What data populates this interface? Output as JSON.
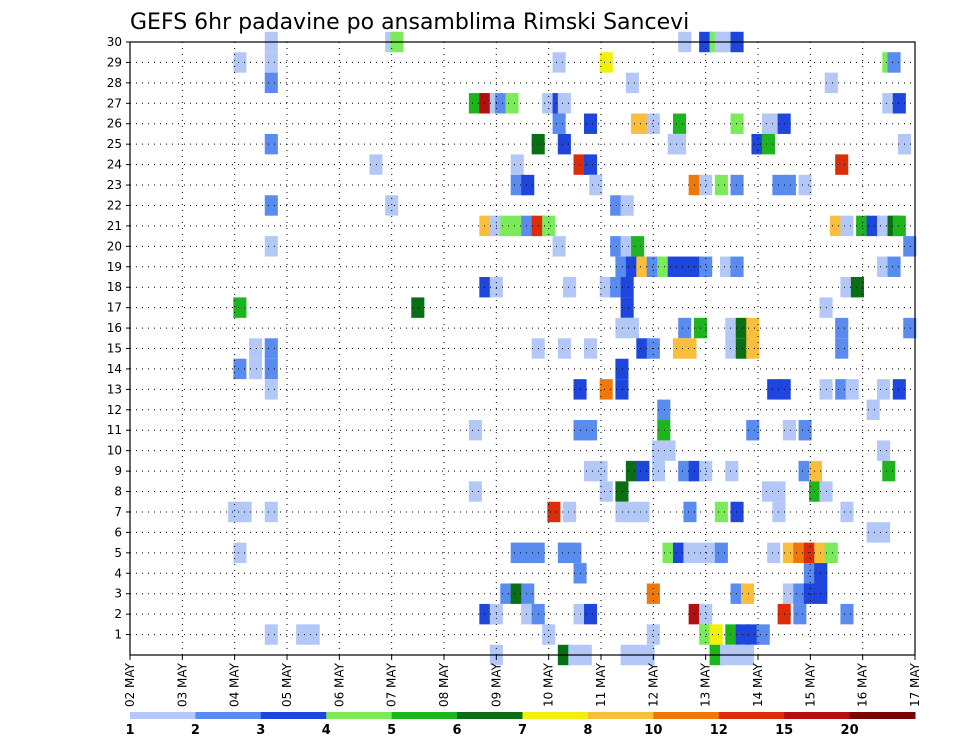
{
  "chart_data": {
    "type": "heatmap",
    "title": "GEFS 6hr padavine po ansamblima Rimski Sancevi",
    "x_labels": [
      "02 MAY",
      "03 MAY",
      "04 MAY",
      "05 MAY",
      "06 MAY",
      "07 MAY",
      "08 MAY",
      "09 MAY",
      "10 MAY",
      "11 MAY",
      "12 MAY",
      "13 MAY",
      "14 MAY",
      "15 MAY",
      "16 MAY",
      "17 MAY"
    ],
    "y_labels": [
      "1",
      "2",
      "3",
      "4",
      "5",
      "6",
      "7",
      "8",
      "9",
      "10",
      "11",
      "12",
      "13",
      "14",
      "15",
      "16",
      "17",
      "18",
      "19",
      "20",
      "21",
      "22",
      "23",
      "24",
      "25",
      "26",
      "27",
      "28",
      "29",
      "30"
    ],
    "ylim": [
      0,
      30
    ],
    "xlim": [
      "02 MAY 00Z",
      "17 MAY 00Z"
    ],
    "time_step_hours": 6,
    "grid": "dotted",
    "legend": {
      "position": "bottom",
      "labels": [
        "1",
        "2",
        "3",
        "4",
        "5",
        "6",
        "7",
        "8",
        "10",
        "12",
        "15",
        "20"
      ],
      "colors": [
        "#b4c8f8",
        "#5a8cf0",
        "#1e46dc",
        "#7ceb5a",
        "#1eb41e",
        "#0a6e14",
        "#f0f00a",
        "#f8be3c",
        "#f0780a",
        "#dc2d0a",
        "#b40f0f",
        "#780505"
      ]
    },
    "points": [
      [
        4.7,
        30,
        1
      ],
      [
        7.0,
        30,
        1
      ],
      [
        7.1,
        30,
        4
      ],
      [
        12.6,
        30,
        1
      ],
      [
        13.0,
        30,
        3
      ],
      [
        13.2,
        30,
        4
      ],
      [
        13.3,
        30,
        1
      ],
      [
        13.5,
        30,
        1
      ],
      [
        13.6,
        30,
        3
      ],
      [
        4.1,
        29,
        1
      ],
      [
        4.7,
        29,
        1
      ],
      [
        10.2,
        29,
        1
      ],
      [
        11.1,
        29,
        7
      ],
      [
        16.5,
        29,
        4
      ],
      [
        16.6,
        29,
        2
      ],
      [
        4.7,
        28,
        2
      ],
      [
        11.6,
        28,
        1
      ],
      [
        15.4,
        28,
        1
      ],
      [
        8.6,
        27,
        5
      ],
      [
        8.8,
        27,
        11
      ],
      [
        9.0,
        27,
        1
      ],
      [
        9.1,
        27,
        2
      ],
      [
        9.3,
        27,
        4
      ],
      [
        10.0,
        27,
        1
      ],
      [
        10.2,
        27,
        3
      ],
      [
        10.3,
        27,
        1
      ],
      [
        16.5,
        27,
        1
      ],
      [
        16.7,
        27,
        3
      ],
      [
        10.2,
        26,
        2
      ],
      [
        10.8,
        26,
        3
      ],
      [
        11.7,
        26,
        8
      ],
      [
        11.9,
        26,
        8
      ],
      [
        12.0,
        26,
        1
      ],
      [
        12.5,
        26,
        5
      ],
      [
        13.6,
        26,
        4
      ],
      [
        14.2,
        26,
        1
      ],
      [
        14.3,
        26,
        1
      ],
      [
        14.5,
        26,
        3
      ],
      [
        4.7,
        25,
        2
      ],
      [
        9.8,
        25,
        6
      ],
      [
        10.3,
        25,
        3
      ],
      [
        12.4,
        25,
        1
      ],
      [
        12.5,
        25,
        1
      ],
      [
        14.0,
        25,
        3
      ],
      [
        14.2,
        25,
        5
      ],
      [
        16.8,
        25,
        1
      ],
      [
        6.7,
        24,
        1
      ],
      [
        9.4,
        24,
        1
      ],
      [
        10.6,
        24,
        10
      ],
      [
        10.8,
        24,
        3
      ],
      [
        15.6,
        24,
        10
      ],
      [
        9.4,
        23,
        2
      ],
      [
        9.6,
        23,
        3
      ],
      [
        10.9,
        23,
        1
      ],
      [
        12.8,
        23,
        9
      ],
      [
        13.0,
        23,
        1
      ],
      [
        13.3,
        23,
        4
      ],
      [
        13.6,
        23,
        2
      ],
      [
        14.4,
        23,
        2
      ],
      [
        14.6,
        23,
        2
      ],
      [
        14.9,
        23,
        1
      ],
      [
        4.7,
        22,
        2
      ],
      [
        7.0,
        22,
        1
      ],
      [
        11.3,
        22,
        2
      ],
      [
        11.5,
        22,
        1
      ],
      [
        8.8,
        21,
        8
      ],
      [
        9.0,
        21,
        1
      ],
      [
        9.2,
        21,
        4
      ],
      [
        9.4,
        21,
        4
      ],
      [
        9.6,
        21,
        2
      ],
      [
        9.8,
        21,
        10
      ],
      [
        10.0,
        21,
        4
      ],
      [
        15.5,
        21,
        8
      ],
      [
        15.7,
        21,
        1
      ],
      [
        16.0,
        21,
        5
      ],
      [
        16.2,
        21,
        3
      ],
      [
        16.4,
        21,
        1
      ],
      [
        16.6,
        21,
        6
      ],
      [
        16.7,
        21,
        5
      ],
      [
        4.7,
        20,
        1
      ],
      [
        10.2,
        20,
        1
      ],
      [
        11.3,
        20,
        2
      ],
      [
        11.5,
        20,
        1
      ],
      [
        11.7,
        20,
        5
      ],
      [
        16.9,
        20,
        2
      ],
      [
        11.4,
        19,
        2
      ],
      [
        11.6,
        19,
        3
      ],
      [
        11.8,
        19,
        8
      ],
      [
        12.0,
        19,
        2
      ],
      [
        12.2,
        19,
        4
      ],
      [
        12.4,
        19,
        3
      ],
      [
        12.6,
        19,
        3
      ],
      [
        12.8,
        19,
        3
      ],
      [
        13.0,
        19,
        2
      ],
      [
        13.4,
        19,
        1
      ],
      [
        13.6,
        19,
        2
      ],
      [
        16.4,
        19,
        1
      ],
      [
        16.6,
        19,
        2
      ],
      [
        8.8,
        18,
        3
      ],
      [
        9.0,
        18,
        1
      ],
      [
        10.4,
        18,
        1
      ],
      [
        11.1,
        18,
        1
      ],
      [
        11.3,
        18,
        2
      ],
      [
        11.5,
        18,
        3
      ],
      [
        15.7,
        18,
        1
      ],
      [
        15.9,
        18,
        6
      ],
      [
        4.1,
        17,
        5
      ],
      [
        7.5,
        17,
        6
      ],
      [
        11.5,
        17,
        3
      ],
      [
        15.3,
        17,
        1
      ],
      [
        11.4,
        16,
        1
      ],
      [
        11.6,
        16,
        1
      ],
      [
        12.6,
        16,
        2
      ],
      [
        12.9,
        16,
        5
      ],
      [
        13.5,
        16,
        1
      ],
      [
        13.7,
        16,
        6
      ],
      [
        13.9,
        16,
        8
      ],
      [
        15.6,
        16,
        2
      ],
      [
        16.9,
        16,
        2
      ],
      [
        4.4,
        15,
        1
      ],
      [
        4.7,
        15,
        2
      ],
      [
        9.8,
        15,
        1
      ],
      [
        10.3,
        15,
        1
      ],
      [
        10.8,
        15,
        1
      ],
      [
        11.8,
        15,
        3
      ],
      [
        12.0,
        15,
        2
      ],
      [
        12.5,
        15,
        8
      ],
      [
        12.7,
        15,
        8
      ],
      [
        13.5,
        15,
        1
      ],
      [
        13.7,
        15,
        6
      ],
      [
        13.9,
        15,
        8
      ],
      [
        15.6,
        15,
        2
      ],
      [
        4.1,
        14,
        2
      ],
      [
        4.4,
        14,
        1
      ],
      [
        4.7,
        14,
        2
      ],
      [
        11.4,
        14,
        3
      ],
      [
        4.7,
        13,
        1
      ],
      [
        10.6,
        13,
        3
      ],
      [
        11.1,
        13,
        9
      ],
      [
        11.4,
        13,
        3
      ],
      [
        14.3,
        13,
        3
      ],
      [
        14.5,
        13,
        3
      ],
      [
        15.3,
        13,
        1
      ],
      [
        15.6,
        13,
        2
      ],
      [
        15.8,
        13,
        1
      ],
      [
        16.4,
        13,
        1
      ],
      [
        16.7,
        13,
        3
      ],
      [
        12.2,
        12,
        2
      ],
      [
        16.2,
        12,
        1
      ],
      [
        8.6,
        11,
        1
      ],
      [
        10.6,
        11,
        2
      ],
      [
        10.8,
        11,
        2
      ],
      [
        12.2,
        11,
        5
      ],
      [
        13.9,
        11,
        2
      ],
      [
        14.6,
        11,
        1
      ],
      [
        14.9,
        11,
        2
      ],
      [
        12.1,
        10,
        1
      ],
      [
        12.3,
        10,
        1
      ],
      [
        16.4,
        10,
        1
      ],
      [
        10.8,
        9,
        1
      ],
      [
        11.0,
        9,
        1
      ],
      [
        11.6,
        9,
        6
      ],
      [
        11.8,
        9,
        3
      ],
      [
        12.1,
        9,
        1
      ],
      [
        12.6,
        9,
        2
      ],
      [
        12.8,
        9,
        3
      ],
      [
        13.0,
        9,
        1
      ],
      [
        13.5,
        9,
        1
      ],
      [
        14.9,
        9,
        2
      ],
      [
        15.1,
        9,
        8
      ],
      [
        16.5,
        9,
        5
      ],
      [
        8.6,
        8,
        1
      ],
      [
        11.1,
        8,
        1
      ],
      [
        11.4,
        8,
        6
      ],
      [
        14.2,
        8,
        1
      ],
      [
        14.4,
        8,
        1
      ],
      [
        15.1,
        8,
        5
      ],
      [
        15.3,
        8,
        1
      ],
      [
        4.0,
        7,
        1
      ],
      [
        4.2,
        7,
        1
      ],
      [
        4.7,
        7,
        1
      ],
      [
        10.1,
        7,
        10
      ],
      [
        10.4,
        7,
        1
      ],
      [
        11.4,
        7,
        1
      ],
      [
        11.6,
        7,
        1
      ],
      [
        11.8,
        7,
        1
      ],
      [
        12.7,
        7,
        2
      ],
      [
        13.3,
        7,
        4
      ],
      [
        13.6,
        7,
        3
      ],
      [
        14.4,
        7,
        1
      ],
      [
        15.7,
        7,
        1
      ],
      [
        16.2,
        6,
        1
      ],
      [
        16.4,
        6,
        1
      ],
      [
        4.1,
        5,
        1
      ],
      [
        9.4,
        5,
        2
      ],
      [
        9.6,
        5,
        2
      ],
      [
        9.8,
        5,
        2
      ],
      [
        10.3,
        5,
        2
      ],
      [
        10.5,
        5,
        2
      ],
      [
        12.3,
        5,
        4
      ],
      [
        12.5,
        5,
        3
      ],
      [
        12.7,
        5,
        1
      ],
      [
        12.9,
        5,
        1
      ],
      [
        13.1,
        5,
        1
      ],
      [
        13.3,
        5,
        2
      ],
      [
        14.3,
        5,
        1
      ],
      [
        14.6,
        5,
        8
      ],
      [
        14.8,
        5,
        9
      ],
      [
        15.0,
        5,
        10
      ],
      [
        15.2,
        5,
        8
      ],
      [
        15.4,
        5,
        4
      ],
      [
        10.6,
        4,
        2
      ],
      [
        15.0,
        4,
        2
      ],
      [
        15.2,
        4,
        3
      ],
      [
        9.2,
        3,
        2
      ],
      [
        9.4,
        3,
        6
      ],
      [
        9.6,
        3,
        2
      ],
      [
        12.0,
        3,
        9
      ],
      [
        13.6,
        3,
        2
      ],
      [
        13.8,
        3,
        8
      ],
      [
        14.6,
        3,
        1
      ],
      [
        14.8,
        3,
        2
      ],
      [
        15.0,
        3,
        3
      ],
      [
        15.2,
        3,
        3
      ],
      [
        8.8,
        2,
        3
      ],
      [
        9.0,
        2,
        1
      ],
      [
        9.6,
        2,
        1
      ],
      [
        9.8,
        2,
        2
      ],
      [
        10.6,
        2,
        1
      ],
      [
        10.8,
        2,
        3
      ],
      [
        12.8,
        2,
        11
      ],
      [
        13.0,
        2,
        1
      ],
      [
        14.5,
        2,
        10
      ],
      [
        14.8,
        2,
        2
      ],
      [
        15.7,
        2,
        2
      ],
      [
        4.7,
        1,
        1
      ],
      [
        5.3,
        1,
        1
      ],
      [
        5.5,
        1,
        1
      ],
      [
        10.0,
        1,
        1
      ],
      [
        12.0,
        1,
        1
      ],
      [
        13.0,
        1,
        4
      ],
      [
        13.2,
        1,
        7
      ],
      [
        13.5,
        1,
        5
      ],
      [
        13.7,
        1,
        3
      ],
      [
        13.9,
        1,
        3
      ],
      [
        14.1,
        1,
        2
      ],
      [
        9.0,
        0,
        1
      ],
      [
        10.3,
        0,
        6
      ],
      [
        10.5,
        0,
        1
      ],
      [
        10.7,
        0,
        1
      ],
      [
        11.5,
        0,
        1
      ],
      [
        11.7,
        0,
        1
      ],
      [
        11.9,
        0,
        1
      ],
      [
        13.2,
        0,
        5
      ],
      [
        13.4,
        0,
        1
      ],
      [
        13.6,
        0,
        1
      ],
      [
        13.8,
        0,
        1
      ]
    ]
  }
}
